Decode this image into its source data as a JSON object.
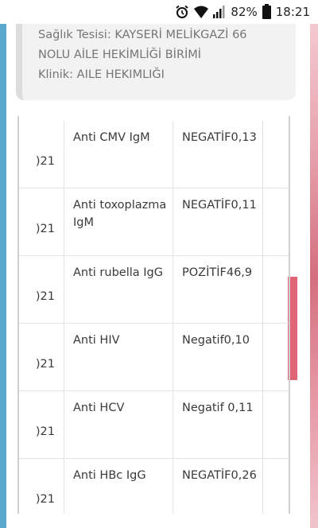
{
  "status_bar": {
    "battery": "82%",
    "time": "18:21"
  },
  "info": {
    "facility_line1": "Sağlık Tesisi: KAYSERİ MELİKGAZİ 66",
    "facility_line2": "NOLU AİLE HEKİMLİĞİ BİRİMİ",
    "clinic": "Klinik: AILE HEKIMLIĞI"
  },
  "table": {
    "rows": [
      {
        "date": ")21",
        "test": "Anti CMV IgM",
        "result": "NEGATİF0,13"
      },
      {
        "date": ")21",
        "test": "Anti toxoplazma IgM",
        "result": "NEGATİF0,11"
      },
      {
        "date": ")21",
        "test": "Anti rubella IgG",
        "result": "POZİTİF46,9"
      },
      {
        "date": ")21",
        "test": "Anti HIV",
        "result": "Negatif0,10"
      },
      {
        "date": ")21",
        "test": "Anti HCV",
        "result": "Negatif 0,11"
      },
      {
        "date": ")21",
        "test": "Anti HBc IgG",
        "result": "NEGATİF0,26"
      }
    ]
  }
}
